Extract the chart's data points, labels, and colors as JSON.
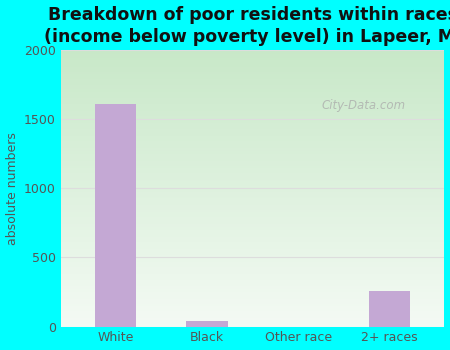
{
  "categories": [
    "White",
    "Black",
    "Other race",
    "2+ races"
  ],
  "values": [
    1610,
    40,
    0,
    260
  ],
  "bar_color": "#c4a8d4",
  "title": "Breakdown of poor residents within races\n(income below poverty level) in Lapeer, MI",
  "ylabel": "absolute numbers",
  "ylim": [
    0,
    2000
  ],
  "yticks": [
    0,
    500,
    1000,
    1500,
    2000
  ],
  "background_color": "#00ffff",
  "plot_bg_top": "#c8e8c8",
  "plot_bg_bottom": "#f4faf4",
  "title_fontsize": 12.5,
  "label_fontsize": 9,
  "tick_fontsize": 9,
  "watermark": "City-Data.com",
  "grid_color": "#dddddd",
  "bar_width": 0.45
}
